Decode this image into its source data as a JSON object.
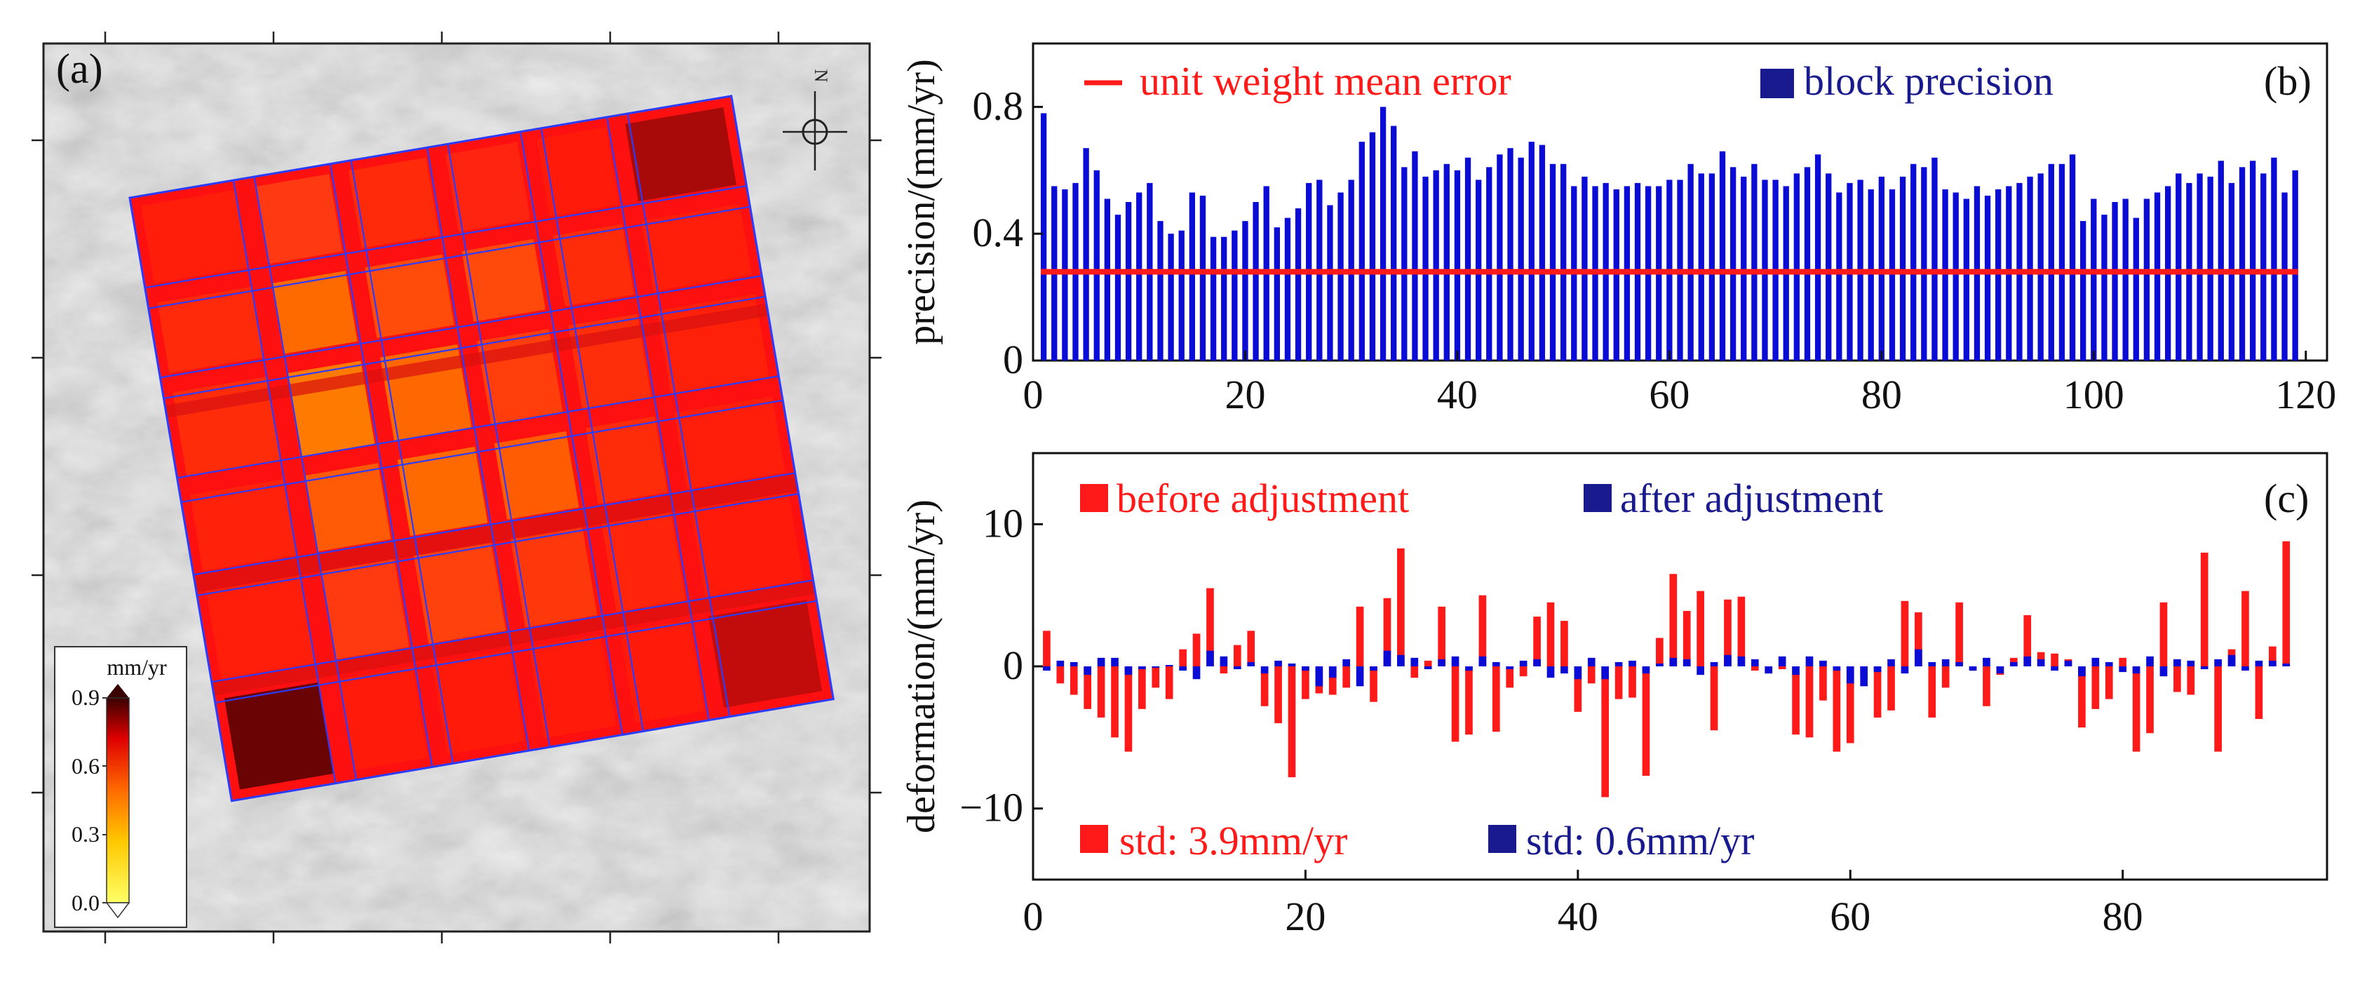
{
  "colors": {
    "red": "#ff1a1a",
    "blue": "#0b0bd6",
    "navy": "#1a1a8f",
    "block_border": "#2a3cff"
  },
  "panel_a": {
    "label": "(a)",
    "colorbar": {
      "unit": "mm/yr",
      "ticks": [
        "0.9",
        "0.6",
        "0.3",
        "0.0"
      ]
    },
    "north_label": "N"
  },
  "panel_b": {
    "label": "(b)",
    "legend_line": "unit weight mean error",
    "legend_bar": "block precision",
    "ylabel": "precision/(mm/yr)"
  },
  "panel_c": {
    "label": "(c)",
    "legend_before": "before adjustment",
    "legend_after": "after adjustment",
    "std_before": "std: 3.9mm/yr",
    "std_after": "std: 0.6mm/yr",
    "ylabel": "deformation/(mm/yr)"
  },
  "chart_data": [
    {
      "id": "b",
      "type": "bar",
      "title": "",
      "xlabel": "",
      "ylabel": "precision/(mm/yr)",
      "xlim": [
        0,
        122
      ],
      "ylim": [
        0,
        1.0
      ],
      "xticks": [
        0,
        20,
        40,
        60,
        80,
        100,
        120
      ],
      "yticks": [
        0,
        0.4,
        0.8
      ],
      "ytick_labels": [
        "0",
        "0.4",
        "0.8"
      ],
      "series": [
        {
          "name": "block precision",
          "x_start": 1,
          "values": [
            0.78,
            0.55,
            0.54,
            0.56,
            0.67,
            0.6,
            0.51,
            0.46,
            0.5,
            0.53,
            0.56,
            0.44,
            0.4,
            0.41,
            0.53,
            0.52,
            0.39,
            0.39,
            0.41,
            0.44,
            0.5,
            0.55,
            0.42,
            0.45,
            0.48,
            0.56,
            0.57,
            0.49,
            0.53,
            0.57,
            0.69,
            0.72,
            0.8,
            0.74,
            0.61,
            0.66,
            0.58,
            0.6,
            0.62,
            0.6,
            0.64,
            0.57,
            0.61,
            0.65,
            0.67,
            0.64,
            0.69,
            0.68,
            0.62,
            0.62,
            0.55,
            0.58,
            0.55,
            0.56,
            0.54,
            0.55,
            0.56,
            0.55,
            0.55,
            0.57,
            0.57,
            0.62,
            0.59,
            0.59,
            0.66,
            0.61,
            0.58,
            0.62,
            0.57,
            0.57,
            0.55,
            0.59,
            0.61,
            0.65,
            0.59,
            0.53,
            0.56,
            0.57,
            0.54,
            0.58,
            0.54,
            0.58,
            0.62,
            0.61,
            0.64,
            0.54,
            0.53,
            0.51,
            0.55,
            0.52,
            0.54,
            0.55,
            0.56,
            0.58,
            0.59,
            0.62,
            0.62,
            0.65,
            0.44,
            0.51,
            0.46,
            0.5,
            0.51,
            0.45,
            0.51,
            0.53,
            0.55,
            0.59,
            0.56,
            0.59,
            0.58,
            0.63,
            0.56,
            0.61,
            0.63,
            0.59,
            0.64,
            0.53,
            0.6
          ]
        },
        {
          "name": "unit weight mean error",
          "type": "line",
          "value": 0.28
        }
      ]
    },
    {
      "id": "c",
      "type": "bar",
      "title": "",
      "xlabel": "",
      "ylabel": "deformation/(mm/yr)",
      "xlim": [
        0,
        95
      ],
      "ylim": [
        -15,
        15
      ],
      "xticks": [
        0,
        20,
        40,
        60,
        80
      ],
      "yticks": [
        -10,
        0,
        10
      ],
      "x_start": 1,
      "series": [
        {
          "name": "before adjustment",
          "values": [
            2.5,
            -1.2,
            -2.0,
            -3.0,
            -3.6,
            -5.0,
            -6.0,
            -3.0,
            -1.5,
            -2.3,
            1.2,
            2.3,
            5.5,
            -0.5,
            1.5,
            2.5,
            -2.8,
            -4.0,
            -7.8,
            -2.3,
            -1.9,
            -2.0,
            -1.5,
            4.2,
            -2.5,
            4.8,
            8.3,
            -0.8,
            0.4,
            4.2,
            -5.3,
            -4.8,
            5.0,
            -4.6,
            -1.5,
            -0.7,
            3.5,
            4.5,
            3.2,
            -3.2,
            -1.2,
            -9.2,
            -2.3,
            -2.2,
            -7.7,
            2.0,
            6.5,
            3.9,
            5.3,
            -4.5,
            4.7,
            4.9,
            -0.3,
            -0.5,
            -0.2,
            -4.8,
            -5.0,
            -2.4,
            -6.0,
            -5.4,
            -0.6,
            -3.6,
            -3.1,
            4.6,
            3.8,
            -3.6,
            -1.5,
            4.5,
            -0.3,
            -2.8,
            -0.6,
            0.6,
            3.6,
            1.0,
            0.9,
            0.5,
            -4.3,
            -3.0,
            -2.3,
            0.6,
            -6.0,
            -4.7,
            4.5,
            -1.8,
            -2.0,
            8.0,
            -6.0,
            1.2,
            5.3,
            -3.7,
            1.4,
            8.8
          ]
        },
        {
          "name": "after adjustment",
          "values": [
            -0.3,
            0.4,
            0.3,
            -0.6,
            0.6,
            0.6,
            -0.6,
            -0.2,
            -0.1,
            0.1,
            -0.3,
            -0.9,
            1.1,
            0.7,
            -0.2,
            0.3,
            -0.5,
            0.4,
            0.2,
            -0.3,
            -1.4,
            -0.8,
            0.5,
            -1.4,
            -0.3,
            1.1,
            0.8,
            0.6,
            -0.2,
            0.5,
            0.7,
            -0.3,
            0.7,
            0.3,
            -0.2,
            0.4,
            0.5,
            -0.8,
            -0.5,
            -0.9,
            0.6,
            -0.9,
            0.3,
            0.4,
            -0.5,
            0.2,
            0.6,
            0.5,
            -0.6,
            0.3,
            0.8,
            0.7,
            0.5,
            -0.5,
            0.7,
            -0.6,
            0.7,
            0.4,
            -0.3,
            -1.2,
            -1.4,
            -0.4,
            0.5,
            -0.5,
            1.2,
            0.3,
            0.5,
            0.3,
            -0.3,
            0.6,
            -0.5,
            0.3,
            0.7,
            0.5,
            -0.3,
            0.4,
            -0.7,
            0.6,
            0.3,
            -0.4,
            -0.5,
            0.7,
            -0.7,
            0.5,
            0.4,
            -0.2,
            0.5,
            0.8,
            -0.3,
            0.4,
            0.4,
            0.2
          ]
        }
      ]
    }
  ]
}
